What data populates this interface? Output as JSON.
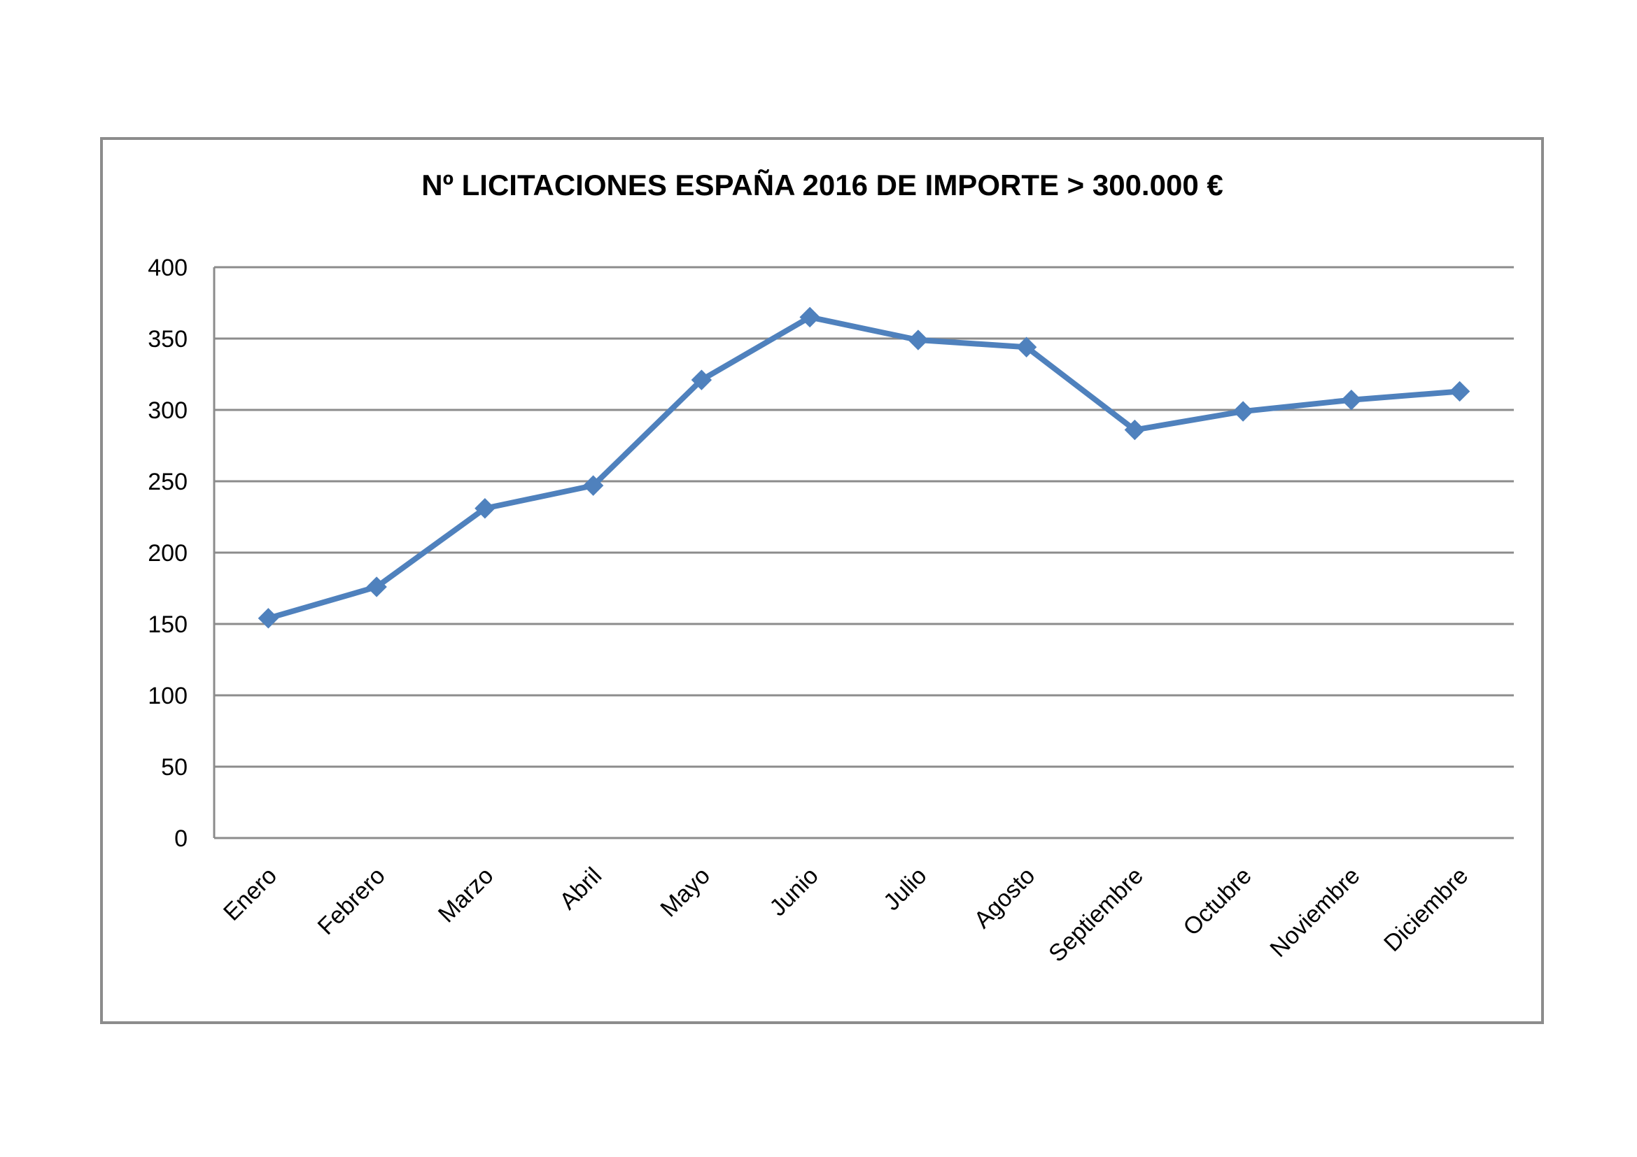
{
  "chart_data": {
    "type": "line",
    "title": "Nº LICITACIONES ESPAÑA 2016 DE IMPORTE > 300.000 €",
    "xlabel": "",
    "ylabel": "",
    "ylim": [
      0,
      400
    ],
    "y_ticks": [
      "0",
      "50",
      "100",
      "150",
      "200",
      "250",
      "300",
      "350",
      "400"
    ],
    "grid": true,
    "legend": "none",
    "categories": [
      "Enero",
      "Febrero",
      "Marzo",
      "Abril",
      "Mayo",
      "Junio",
      "Julio",
      "Agosto",
      "Septiembre",
      "Octubre",
      "Noviembre",
      "Diciembre"
    ],
    "series": [
      {
        "values": [
          154,
          176,
          231,
          247,
          321,
          365,
          349,
          344,
          286,
          299,
          307,
          313
        ],
        "color": "#4f81bd",
        "marker": "diamond"
      }
    ]
  }
}
